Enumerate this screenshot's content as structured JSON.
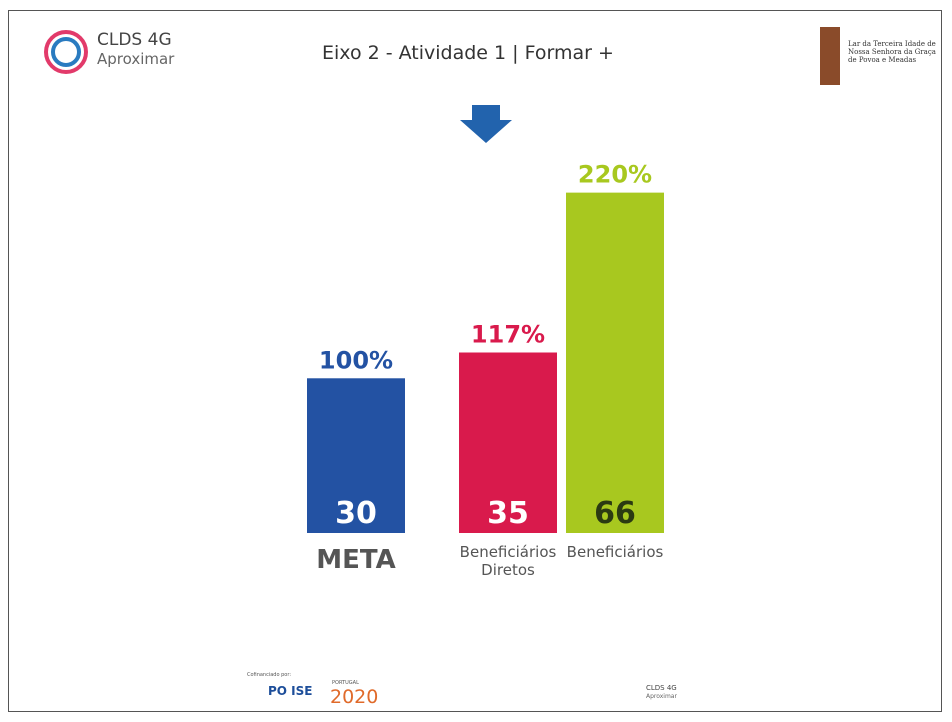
{
  "header": {
    "logo_title": "CLDS 4G",
    "logo_subtitle": "Aproximar",
    "title": "Eixo 2 - Atividade 1 | Formar +",
    "partner": "Lar da Terceira Idade de Nossa Senhora da Graça de Povoa e Meadas"
  },
  "chart_data": {
    "type": "bar",
    "categories": [
      "META",
      "Beneficiários Diretos",
      "Beneficiários"
    ],
    "values": [
      30,
      35,
      66
    ],
    "colors": [
      "#2352a3",
      "#d91a4c",
      "#a8c81f"
    ],
    "value_text_colors": [
      "#ffffff",
      "#ffffff",
      "#2b3a12"
    ],
    "percentage_labels": [
      "100%",
      "117%",
      "220%"
    ],
    "ylim": [
      0,
      70
    ]
  },
  "footer": {
    "cofinanced": "Cofinanciado por:",
    "poise": "PO ISE",
    "portugal": "PORTUGAL",
    "year": "2020",
    "clds": "CLDS 4G",
    "aproximar": "Aproximar"
  }
}
